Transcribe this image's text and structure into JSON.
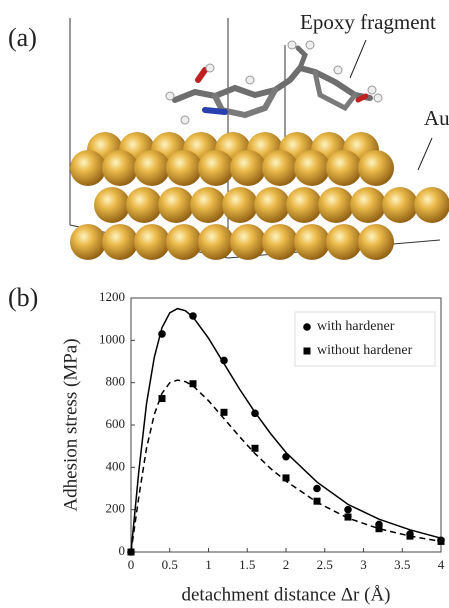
{
  "figure": {
    "panel_a_label": "(a)",
    "panel_b_label": "(b)",
    "annotations": [
      "Epoxy fragment",
      "Au"
    ]
  },
  "chart_data": {
    "type": "line",
    "xlabel": "detachment distance Δr (Å)",
    "ylabel": "Adhesion stress (MPa)",
    "x": [
      0,
      0.4,
      0.8,
      1.2,
      1.6,
      2.0,
      2.4,
      2.8,
      3.2,
      3.6,
      4.0
    ],
    "series": [
      {
        "name": "with hardener",
        "color": "#000000",
        "marker": "circle",
        "values": [
          0,
          1030,
          1115,
          905,
          655,
          450,
          300,
          200,
          130,
          85,
          55
        ]
      },
      {
        "name": "without hardener",
        "color": "#000000",
        "marker": "square",
        "values": [
          0,
          725,
          795,
          660,
          490,
          350,
          240,
          165,
          110,
          75,
          50
        ]
      }
    ],
    "fits": [
      {
        "color": "#000000",
        "dash": "solid",
        "x": [
          0,
          0.1,
          0.2,
          0.3,
          0.4,
          0.5,
          0.6,
          0.7,
          0.8,
          1.0,
          1.2,
          1.4,
          1.6,
          1.8,
          2.0,
          2.4,
          2.8,
          3.2,
          3.6,
          4.0
        ],
        "values": [
          0,
          380,
          700,
          920,
          1060,
          1130,
          1150,
          1140,
          1110,
          1010,
          890,
          770,
          660,
          560,
          470,
          330,
          225,
          155,
          105,
          65
        ]
      },
      {
        "color": "#000000",
        "dash": "dashed",
        "x": [
          0,
          0.1,
          0.2,
          0.3,
          0.4,
          0.5,
          0.6,
          0.7,
          0.8,
          1.0,
          1.2,
          1.4,
          1.6,
          1.8,
          2.0,
          2.4,
          2.8,
          3.2,
          3.6,
          4.0
        ],
        "values": [
          0,
          260,
          490,
          650,
          750,
          800,
          812,
          805,
          785,
          715,
          630,
          545,
          465,
          395,
          335,
          235,
          160,
          110,
          75,
          50
        ]
      }
    ],
    "xlim": [
      0,
      4
    ],
    "xticks": [
      0,
      0.5,
      1,
      1.5,
      2,
      2.5,
      3,
      3.5,
      4
    ],
    "ylim": [
      0,
      1200
    ],
    "yticks": [
      0,
      200,
      400,
      600,
      800,
      1000,
      1200
    ],
    "grid": false,
    "legend": "upper right"
  }
}
